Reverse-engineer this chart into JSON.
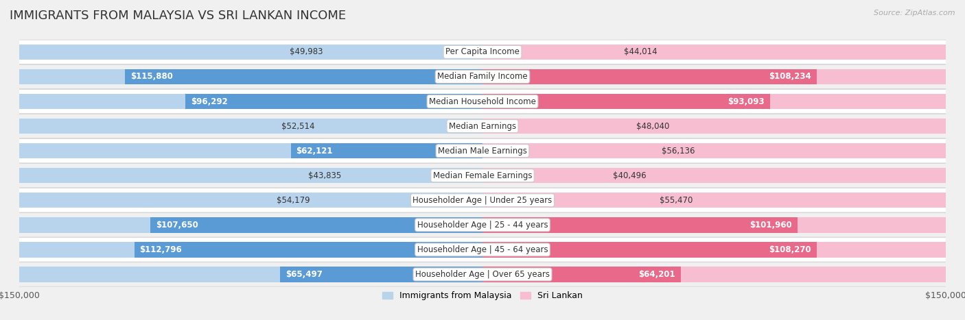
{
  "title": "IMMIGRANTS FROM MALAYSIA VS SRI LANKAN INCOME",
  "source": "Source: ZipAtlas.com",
  "categories": [
    "Per Capita Income",
    "Median Family Income",
    "Median Household Income",
    "Median Earnings",
    "Median Male Earnings",
    "Median Female Earnings",
    "Householder Age | Under 25 years",
    "Householder Age | 25 - 44 years",
    "Householder Age | 45 - 64 years",
    "Householder Age | Over 65 years"
  ],
  "malaysia_values": [
    49983,
    115880,
    96292,
    52514,
    62121,
    43835,
    54179,
    107650,
    112796,
    65497
  ],
  "srilankan_values": [
    44014,
    108234,
    93093,
    48040,
    56136,
    40496,
    55470,
    101960,
    108270,
    64201
  ],
  "malaysia_labels": [
    "$49,983",
    "$115,880",
    "$96,292",
    "$52,514",
    "$62,121",
    "$43,835",
    "$54,179",
    "$107,650",
    "$112,796",
    "$65,497"
  ],
  "srilankan_labels": [
    "$44,014",
    "$108,234",
    "$93,093",
    "$48,040",
    "$56,136",
    "$40,496",
    "$55,470",
    "$101,960",
    "$108,270",
    "$64,201"
  ],
  "malaysia_light_color": "#b8d4ec",
  "malaysia_dark_color": "#5b9bd5",
  "srilankan_light_color": "#f7bdd0",
  "srilankan_dark_color": "#e8698a",
  "max_value": 150000,
  "bar_height": 0.62,
  "background_color": "#f0f0f0",
  "row_colors": [
    "#ffffff",
    "#f0f0f0"
  ],
  "row_border_color": "#d0d0d0",
  "legend_malaysia": "Immigrants from Malaysia",
  "legend_srilankan": "Sri Lankan",
  "title_fontsize": 13,
  "category_fontsize": 8.5,
  "value_fontsize": 8.5,
  "inside_label_threshold": 0.38
}
